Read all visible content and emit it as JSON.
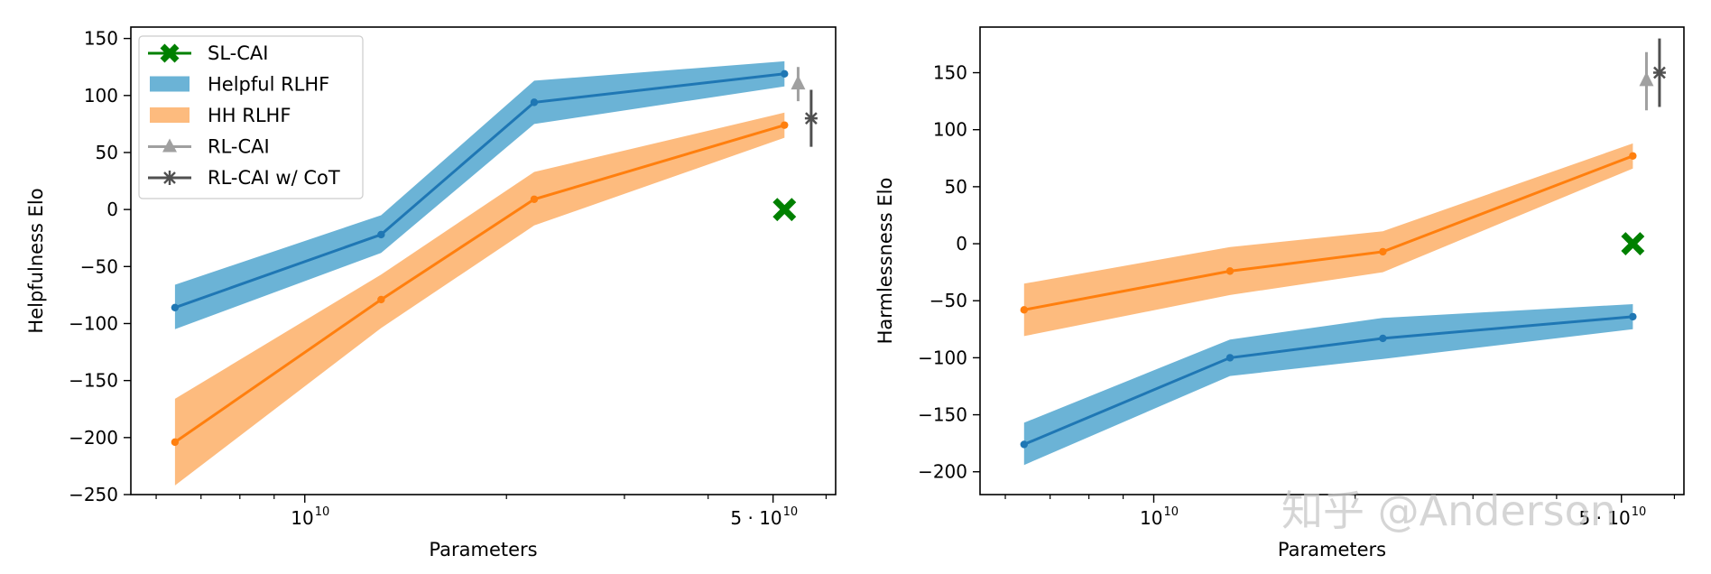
{
  "chart_data": [
    {
      "type": "line",
      "title": "",
      "xlabel": "Parameters",
      "ylabel": "Helpfulness Elo",
      "xscale": "log",
      "xlim": [
        5500000000,
        62000000000
      ],
      "ylim": [
        -250,
        160
      ],
      "yticks": [
        {
          "value": -250,
          "label": "−250"
        },
        {
          "value": -200,
          "label": "−200"
        },
        {
          "value": -150,
          "label": "−150"
        },
        {
          "value": -100,
          "label": "−100"
        },
        {
          "value": -50,
          "label": "−50"
        },
        {
          "value": 0,
          "label": "0"
        },
        {
          "value": 50,
          "label": "50"
        },
        {
          "value": 100,
          "label": "100"
        },
        {
          "value": 150,
          "label": "150"
        }
      ],
      "xtick_labels": [
        {
          "value": 10000000000,
          "base": "10",
          "exp": "10"
        },
        {
          "value": 50000000000,
          "base": "5 · 10",
          "exp": "10"
        }
      ],
      "x_minor_ticks": [
        6000000000,
        7000000000,
        8000000000,
        9000000000,
        20000000000,
        30000000000,
        40000000000,
        60000000000
      ],
      "x": [
        6400000000,
        13000000000,
        22000000000,
        52000000000
      ],
      "series": [
        {
          "name": "Helpful RLHF",
          "color": "#1f77b4",
          "band_color": "#6bb3d6",
          "values": [
            -86,
            -22,
            94,
            119
          ],
          "lower": [
            -105,
            -38,
            75,
            108
          ],
          "upper": [
            -66,
            -5,
            113,
            130
          ]
        },
        {
          "name": "HH RLHF",
          "color": "#ff7f0e",
          "band_color": "#fdbb7e",
          "values": [
            -204,
            -79,
            9,
            74
          ],
          "lower": [
            -242,
            -104,
            -14,
            63
          ],
          "upper": [
            -166,
            -57,
            33,
            85
          ]
        }
      ],
      "points": {
        "sl_cai": {
          "x": 52000000000,
          "y": 0
        },
        "rl_cai": {
          "x": 54500000000,
          "y": 110,
          "err_low": 95,
          "err_high": 125
        },
        "rl_cai_cot": {
          "x": 57000000000,
          "y": 80,
          "err_low": 55,
          "err_high": 105
        }
      },
      "legend": {
        "placement": "upper-left",
        "entries": [
          {
            "label": "SL-CAI",
            "kind": "marker-x",
            "color": "#008000"
          },
          {
            "label": "Helpful RLHF",
            "kind": "patch",
            "color": "#6bb3d6"
          },
          {
            "label": "HH RLHF",
            "kind": "patch",
            "color": "#fdbb7e"
          },
          {
            "label": "RL-CAI",
            "kind": "marker-triangle",
            "color": "#a0a0a0"
          },
          {
            "label": "RL-CAI w/ CoT",
            "kind": "marker-star",
            "color": "#505050"
          }
        ]
      }
    },
    {
      "type": "line",
      "title": "",
      "xlabel": "Parameters",
      "ylabel": "Harmlessness Elo",
      "xscale": "log",
      "xlim": [
        5500000000,
        62000000000
      ],
      "ylim": [
        -220,
        190
      ],
      "yticks": [
        {
          "value": -200,
          "label": "−200"
        },
        {
          "value": -150,
          "label": "−150"
        },
        {
          "value": -100,
          "label": "−100"
        },
        {
          "value": -50,
          "label": "−50"
        },
        {
          "value": 0,
          "label": "0"
        },
        {
          "value": 50,
          "label": "50"
        },
        {
          "value": 100,
          "label": "100"
        },
        {
          "value": 150,
          "label": "150"
        }
      ],
      "xtick_labels": [
        {
          "value": 10000000000,
          "base": "10",
          "exp": "10"
        },
        {
          "value": 50000000000,
          "base": "5 · 10",
          "exp": "10"
        }
      ],
      "x_minor_ticks": [
        6000000000,
        7000000000,
        8000000000,
        9000000000,
        20000000000,
        30000000000,
        40000000000,
        60000000000
      ],
      "x": [
        6400000000,
        13000000000,
        22000000000,
        52000000000
      ],
      "series": [
        {
          "name": "Helpful RLHF",
          "color": "#1f77b4",
          "band_color": "#6bb3d6",
          "values": [
            -176,
            -100,
            -83,
            -64
          ],
          "lower": [
            -194,
            -116,
            -101,
            -75
          ],
          "upper": [
            -157,
            -84,
            -65,
            -53
          ]
        },
        {
          "name": "HH RLHF",
          "color": "#ff7f0e",
          "band_color": "#fdbb7e",
          "values": [
            -58,
            -24,
            -7,
            77
          ],
          "lower": [
            -81,
            -45,
            -25,
            66
          ],
          "upper": [
            -35,
            -3,
            11,
            88
          ]
        }
      ],
      "points": {
        "sl_cai": {
          "x": 52000000000,
          "y": 0
        },
        "rl_cai": {
          "x": 54500000000,
          "y": 143,
          "err_low": 117,
          "err_high": 168
        },
        "rl_cai_cot": {
          "x": 57000000000,
          "y": 150,
          "err_low": 120,
          "err_high": 180
        }
      }
    }
  ],
  "watermark": "知乎 @Anderson"
}
